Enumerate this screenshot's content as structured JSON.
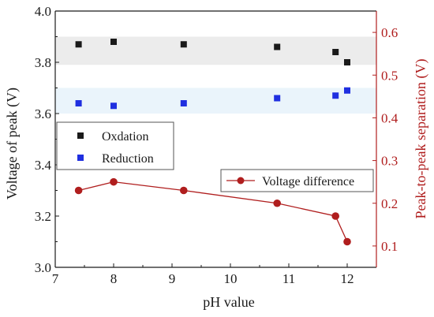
{
  "chart_data": {
    "type": "scatter",
    "xlabel": "pH value",
    "ylabel_left": "Voltage of peak (V)",
    "ylabel_right": "Peak-to-peak separation (V)",
    "xlim": [
      7,
      12.5
    ],
    "ylim_left": [
      3.0,
      4.0
    ],
    "ylim_right": [
      0.05,
      0.65
    ],
    "x_ticks": [
      "7",
      "8",
      "9",
      "10",
      "11",
      "12"
    ],
    "y_left_ticks": [
      "3.0",
      "3.2",
      "3.4",
      "3.6",
      "3.8",
      "4.0"
    ],
    "y_right_ticks": [
      "0.1",
      "0.2",
      "0.3",
      "0.4",
      "0.5",
      "0.6"
    ],
    "bands": [
      {
        "axis": "left",
        "from": 3.79,
        "to": 3.9,
        "color": "#ececec"
      },
      {
        "axis": "left",
        "from": 3.6,
        "to": 3.7,
        "color": "#eaf4fb"
      }
    ],
    "series": [
      {
        "name": "Oxdation",
        "axis": "left",
        "marker": "square",
        "color": "#1a1a1a",
        "points": [
          [
            7.4,
            3.87
          ],
          [
            8.0,
            3.88
          ],
          [
            9.2,
            3.87
          ],
          [
            10.8,
            3.86
          ],
          [
            11.8,
            3.84
          ],
          [
            12.0,
            3.8
          ]
        ]
      },
      {
        "name": "Reduction",
        "axis": "left",
        "marker": "square",
        "color": "#1f2fe0",
        "points": [
          [
            7.4,
            3.64
          ],
          [
            8.0,
            3.63
          ],
          [
            9.2,
            3.64
          ],
          [
            10.8,
            3.66
          ],
          [
            11.8,
            3.67
          ],
          [
            12.0,
            3.69
          ]
        ]
      },
      {
        "name": "Voltage difference",
        "axis": "right",
        "marker": "circle-line",
        "color": "#b01e1e",
        "points": [
          [
            7.4,
            0.23
          ],
          [
            8.0,
            0.25
          ],
          [
            9.2,
            0.23
          ],
          [
            10.8,
            0.2
          ],
          [
            11.8,
            0.17
          ],
          [
            12.0,
            0.11
          ]
        ]
      }
    ],
    "legend_left_placement": "middle-left",
    "legend_right_placement": "middle-right"
  },
  "colors": {
    "axis": "#1a1a1a",
    "right_axis": "#b01e1e"
  }
}
